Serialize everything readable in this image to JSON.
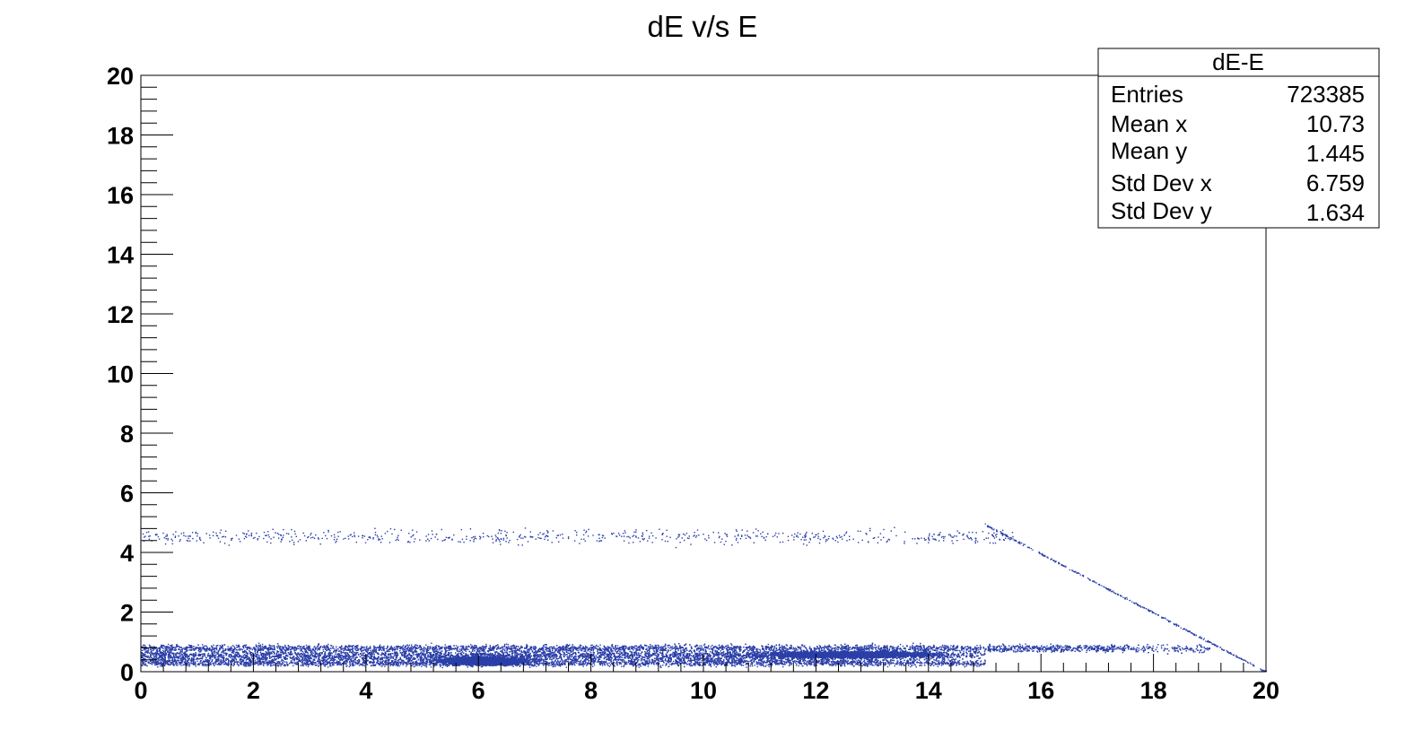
{
  "chart_data": {
    "type": "scatter",
    "title": "dE v/s E",
    "xlabel": "",
    "ylabel": "",
    "xlim": [
      0,
      20
    ],
    "ylim": [
      0,
      20
    ],
    "x_tick_labels": [
      "0",
      "2",
      "4",
      "6",
      "8",
      "10",
      "12",
      "14",
      "16",
      "18",
      "20"
    ],
    "y_tick_labels": [
      "0",
      "2",
      "4",
      "6",
      "8",
      "10",
      "12",
      "14",
      "16",
      "18",
      "20"
    ],
    "grid": false,
    "marker_color": "#2b3fa8",
    "stats_box": {
      "placement": "top-right",
      "title": "dE-E",
      "rows": [
        {
          "label": "Entries",
          "value": "723385"
        },
        {
          "label": "Mean x",
          "value": "10.73"
        },
        {
          "label": "Mean y",
          "value": "1.445"
        },
        {
          "label": "Std Dev x",
          "value": "6.759"
        },
        {
          "label": "Std Dev y",
          "value": "1.634"
        }
      ]
    },
    "features": [
      {
        "kind": "band",
        "x_range": [
          0,
          19
        ],
        "y_center": 0.8,
        "y_spread": 0.06,
        "density": "high"
      },
      {
        "kind": "band",
        "x_range": [
          0,
          15
        ],
        "y_center": 0.6,
        "y_spread": 0.06,
        "density": "high"
      },
      {
        "kind": "band",
        "x_range": [
          0,
          14.5
        ],
        "y_center": 0.45,
        "y_spread": 0.07,
        "density": "high"
      },
      {
        "kind": "band",
        "x_range": [
          0,
          15
        ],
        "y_center": 0.3,
        "y_spread": 0.05,
        "density": "medium"
      },
      {
        "kind": "band",
        "x_range": [
          0,
          15.5
        ],
        "y_center": 4.55,
        "y_spread": 0.12,
        "density": "low"
      },
      {
        "kind": "cluster",
        "x_center": 6.1,
        "y_center": 0.38,
        "x_spread": 0.7,
        "y_spread": 0.06
      },
      {
        "kind": "cluster",
        "x_center": 12.6,
        "y_center": 0.6,
        "x_spread": 1.5,
        "y_spread": 0.05
      },
      {
        "kind": "line",
        "from": [
          15,
          4.95
        ],
        "to": [
          20,
          0
        ]
      }
    ]
  }
}
